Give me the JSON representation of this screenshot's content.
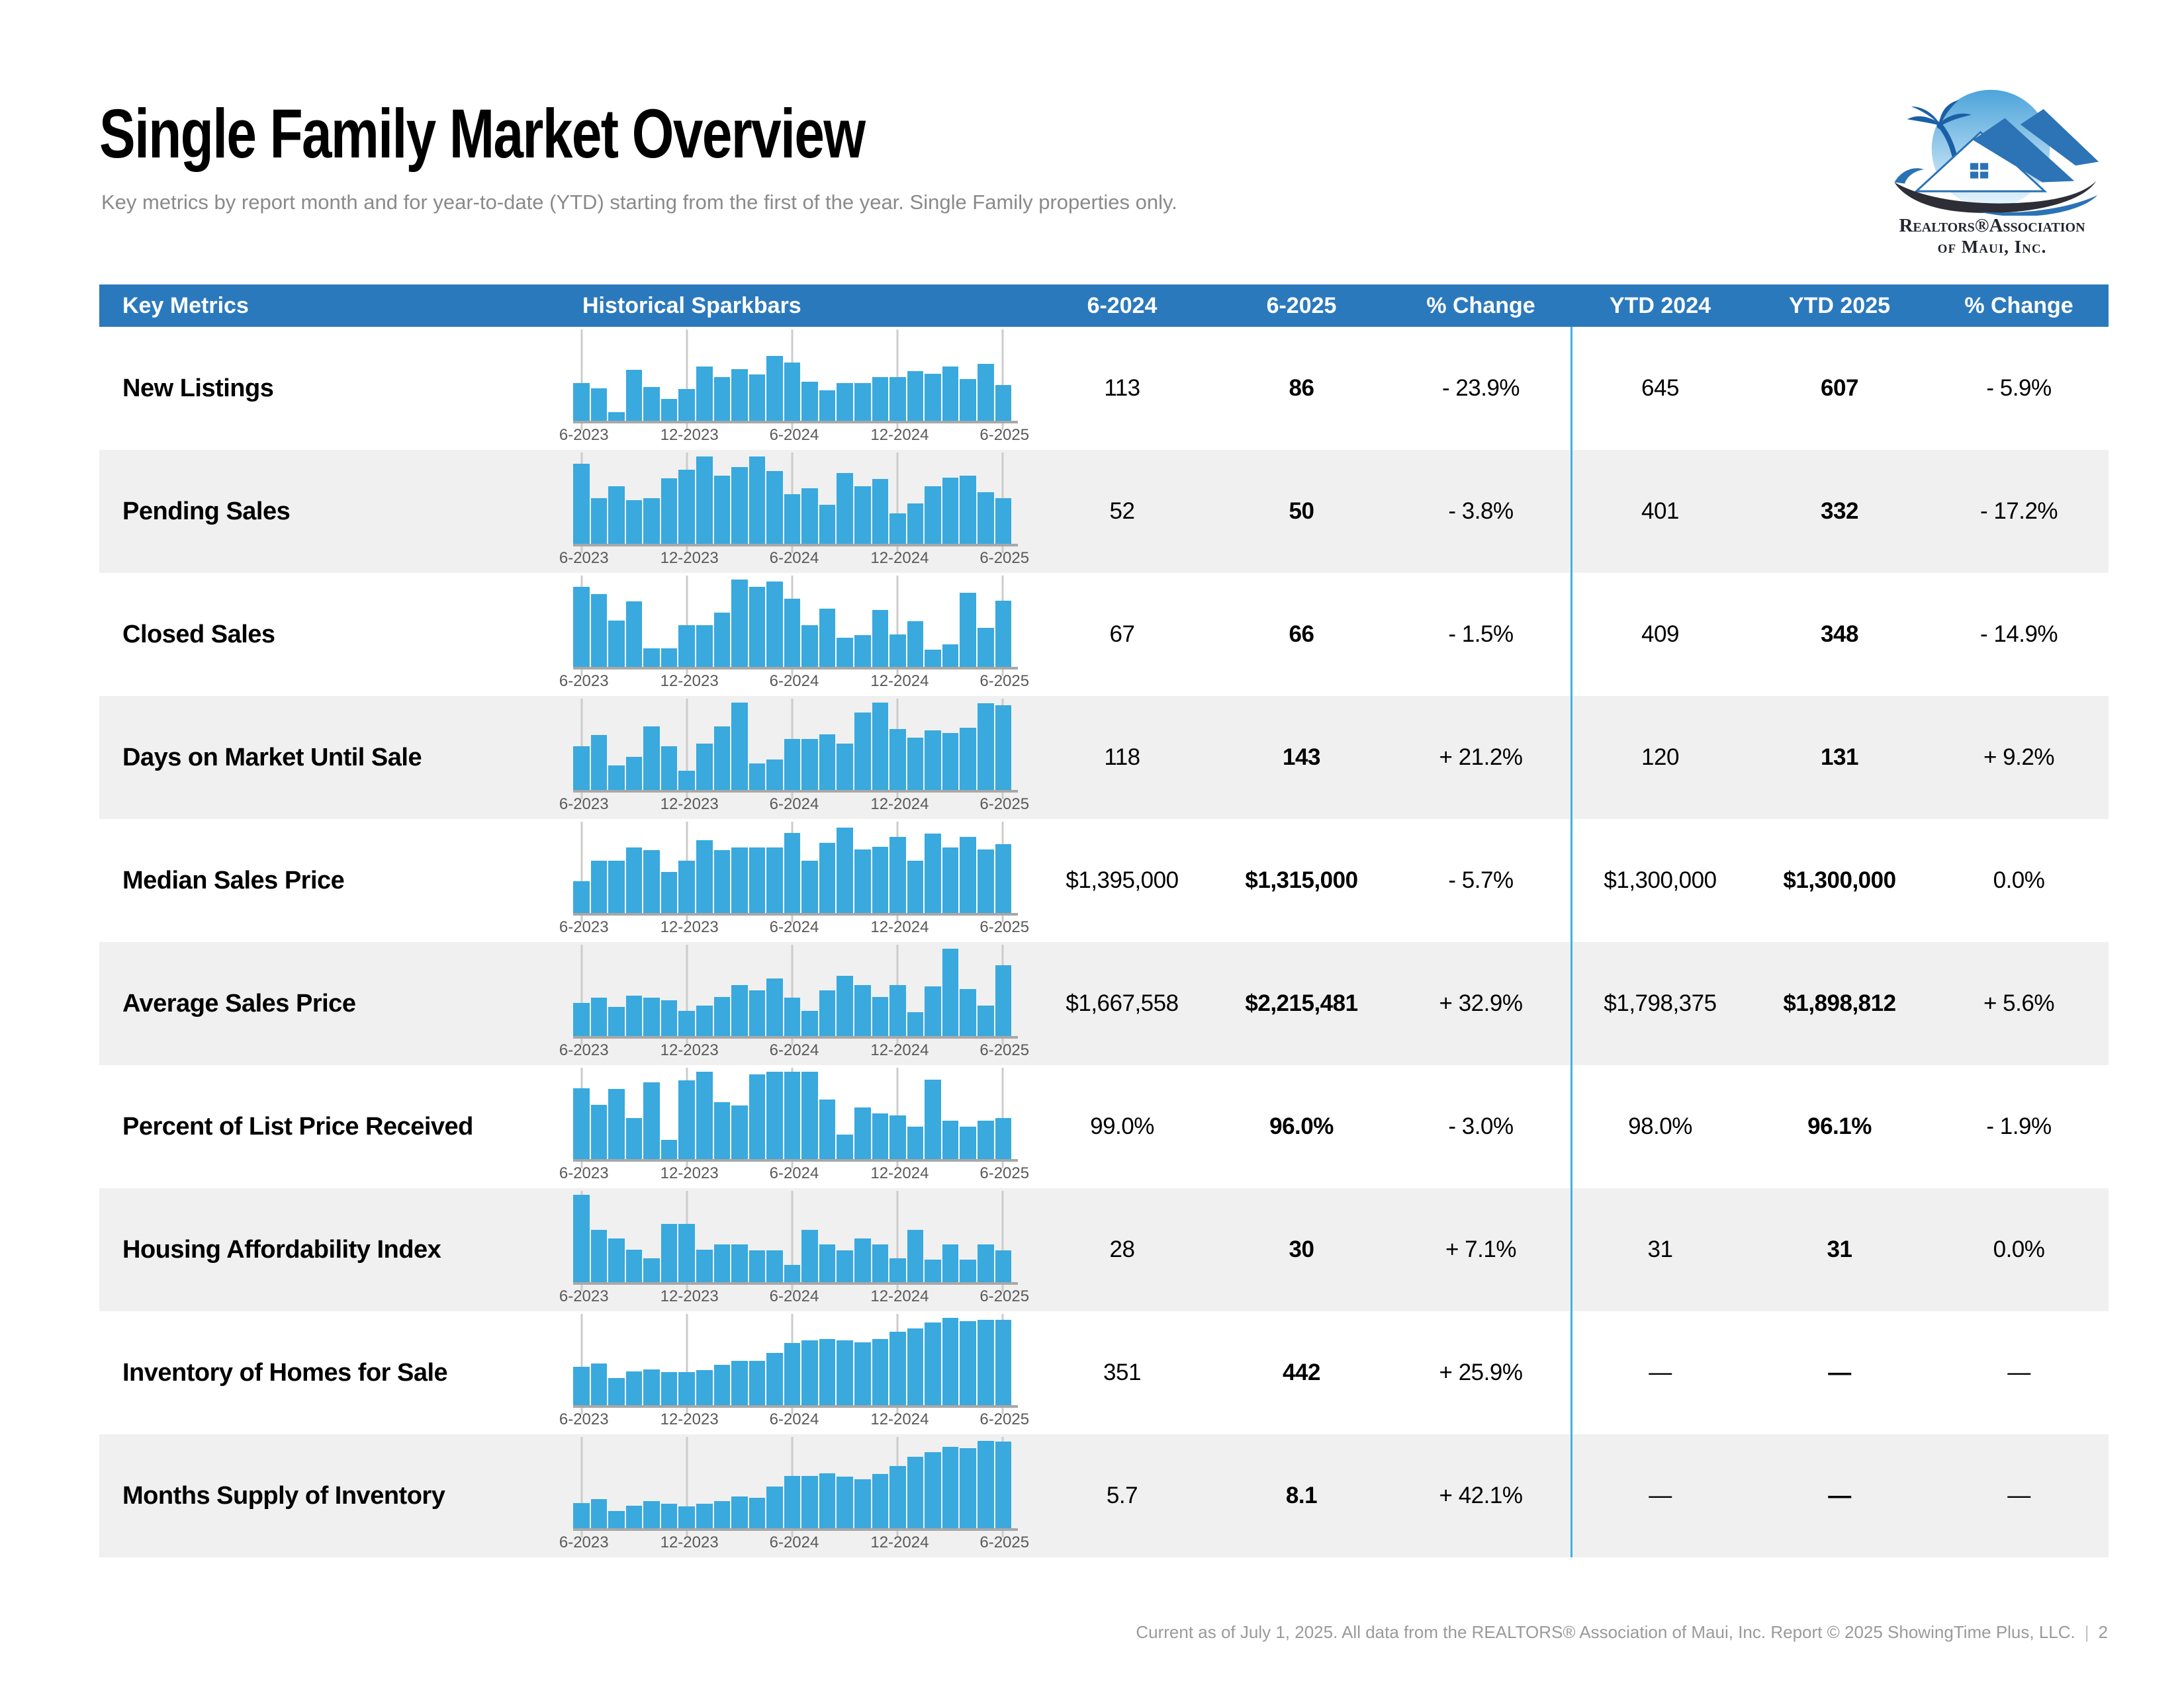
{
  "page": {
    "title": "Single Family Market Overview",
    "subtitle": "Key metrics by report month and for year-to-date (YTD) starting from the first of the year. Single Family properties only.",
    "footer_text": "Current as of July 1, 2025. All data from the REALTORS® Association of Maui, Inc. Report © 2025 ShowingTime Plus, LLC.",
    "page_number": "2"
  },
  "logo": {
    "line1": "Realtors®Association",
    "line2": "of Maui, Inc."
  },
  "colors": {
    "header_bg": "#2b79bd",
    "bar_blue": "#39a9de",
    "row_alt": "#f0f0f0",
    "ytd_divider": "#3fb1e3"
  },
  "table": {
    "headers": [
      "Key Metrics",
      "Historical Sparkbars",
      "6-2024",
      "6-2025",
      "% Change",
      "YTD 2024",
      "YTD 2025",
      "% Change"
    ],
    "spark_axis_labels": [
      "6-2023",
      "12-2023",
      "6-2024",
      "12-2024",
      "6-2025"
    ],
    "rows": [
      {
        "metric": "New Listings",
        "v2024": "113",
        "v2025": "86",
        "pct": "- 23.9%",
        "ytd2024": "645",
        "ytd2025": "607",
        "ytd_pct": "- 5.9%",
        "spark": [
          43,
          37,
          10,
          58,
          39,
          25,
          36,
          62,
          50,
          59,
          53,
          74,
          67,
          45,
          35,
          43,
          43,
          50,
          50,
          57,
          54,
          62,
          48,
          65,
          41
        ]
      },
      {
        "metric": "Pending Sales",
        "v2024": "52",
        "v2025": "50",
        "pct": "- 3.8%",
        "ytd2024": "401",
        "ytd2025": "332",
        "ytd_pct": "- 17.2%",
        "spark": [
          92,
          52,
          66,
          50,
          52,
          75,
          85,
          100,
          78,
          88,
          100,
          83,
          57,
          64,
          45,
          81,
          66,
          74,
          35,
          46,
          66,
          76,
          78,
          59,
          52
        ]
      },
      {
        "metric": "Closed Sales",
        "v2024": "67",
        "v2025": "66",
        "pct": "- 1.5%",
        "ytd2024": "409",
        "ytd2025": "348",
        "ytd_pct": "- 14.9%",
        "spark": [
          92,
          83,
          53,
          75,
          21,
          21,
          48,
          48,
          62,
          100,
          92,
          98,
          78,
          48,
          67,
          33,
          36,
          65,
          37,
          52,
          20,
          26,
          85,
          45,
          76
        ]
      },
      {
        "metric": "Days on Market Until Sale",
        "v2024": "118",
        "v2025": "143",
        "pct": "+ 21.2%",
        "ytd2024": "120",
        "ytd2025": "131",
        "ytd_pct": "+ 9.2%",
        "spark": [
          50,
          63,
          28,
          38,
          73,
          50,
          22,
          53,
          73,
          100,
          30,
          35,
          58,
          58,
          64,
          53,
          89,
          100,
          70,
          60,
          68,
          65,
          71,
          99,
          97
        ]
      },
      {
        "metric": "Median Sales Price",
        "v2024": "$1,395,000",
        "v2025": "$1,315,000",
        "pct": "- 5.7%",
        "ytd2024": "$1,300,000",
        "ytd2025": "$1,300,000",
        "ytd_pct": "0.0%",
        "spark": [
          36,
          60,
          60,
          75,
          72,
          47,
          60,
          83,
          72,
          75,
          75,
          75,
          92,
          60,
          80,
          98,
          73,
          76,
          87,
          60,
          91,
          75,
          87,
          73,
          79
        ]
      },
      {
        "metric": "Average Sales Price",
        "v2024": "$1,667,558",
        "v2025": "$2,215,481",
        "pct": "+ 32.9%",
        "ytd2024": "$1,798,375",
        "ytd2025": "$1,898,812",
        "ytd_pct": "+ 5.6%",
        "spark": [
          38,
          44,
          33,
          46,
          44,
          41,
          29,
          35,
          45,
          58,
          52,
          66,
          44,
          29,
          52,
          69,
          58,
          45,
          58,
          27,
          57,
          100,
          54,
          35,
          81
        ]
      },
      {
        "metric": "Percent of List Price Received",
        "v2024": "99.0%",
        "v2025": "96.0%",
        "pct": "- 3.0%",
        "ytd2024": "98.0%",
        "ytd2025": "96.1%",
        "ytd_pct": "- 1.9%",
        "spark": [
          81,
          62,
          80,
          47,
          88,
          22,
          90,
          100,
          65,
          61,
          97,
          100,
          100,
          100,
          68,
          28,
          59,
          52,
          50,
          37,
          91,
          44,
          37,
          44,
          47
        ]
      },
      {
        "metric": "Housing Affordability Index",
        "v2024": "28",
        "v2025": "30",
        "pct": "+ 7.1%",
        "ytd2024": "31",
        "ytd2025": "31",
        "ytd_pct": "0.0%",
        "spark": [
          100,
          60,
          50,
          37,
          27,
          67,
          67,
          37,
          43,
          43,
          36,
          36,
          20,
          60,
          43,
          36,
          50,
          43,
          27,
          60,
          26,
          43,
          26,
          43,
          36
        ]
      },
      {
        "metric": "Inventory of Homes for Sale",
        "v2024": "351",
        "v2025": "442",
        "pct": "+ 25.9%",
        "ytd2024": "—",
        "ytd2025": "—",
        "ytd_pct": "—",
        "spark": [
          44,
          48,
          31,
          39,
          41,
          38,
          38,
          40,
          46,
          51,
          51,
          60,
          71,
          74,
          76,
          74,
          72,
          76,
          84,
          88,
          95,
          100,
          96,
          98,
          98
        ]
      },
      {
        "metric": "Months Supply of Inventory",
        "v2024": "5.7",
        "v2025": "8.1",
        "pct": "+ 42.1%",
        "ytd2024": "—",
        "ytd2025": "—",
        "ytd_pct": "—",
        "spark": [
          29,
          33,
          20,
          26,
          31,
          28,
          25,
          28,
          31,
          36,
          35,
          48,
          60,
          60,
          63,
          59,
          56,
          62,
          71,
          82,
          87,
          93,
          92,
          100,
          99
        ]
      }
    ]
  }
}
